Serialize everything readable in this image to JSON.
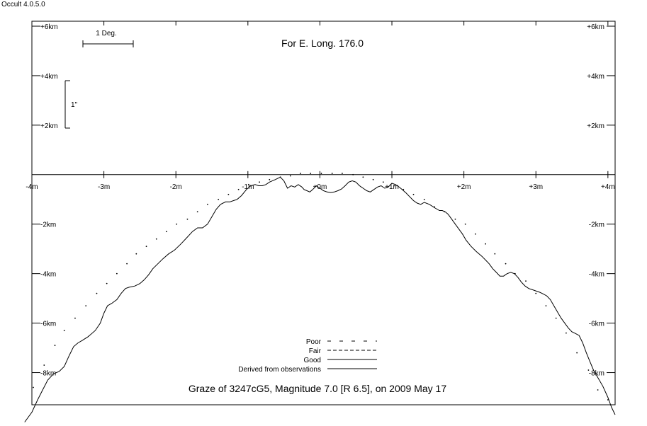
{
  "app": {
    "title": "Occult 4.0.5.0"
  },
  "chart_data": {
    "type": "line",
    "header": "For E. Long. 176.0",
    "title": "Graze of  3247cG5,  Magnitude 7.0 [R 6.5],  on 2009 May 17",
    "scale_bar_deg": "1 Deg.",
    "scale_bar_arcsec": "1\"",
    "xlim": [
      -4.0,
      4.1
    ],
    "ylim": [
      -9.3,
      6.2
    ],
    "x_ticks": [
      {
        "v": -4,
        "label": "-4m"
      },
      {
        "v": -3,
        "label": "-3m"
      },
      {
        "v": -2,
        "label": "-2m"
      },
      {
        "v": -1,
        "label": "-1m"
      },
      {
        "v": 0,
        "label": "+0m"
      },
      {
        "v": 1,
        "label": "+1m"
      },
      {
        "v": 2,
        "label": "+2m"
      },
      {
        "v": 3,
        "label": "+3m"
      },
      {
        "v": 4,
        "label": "+4m"
      }
    ],
    "y_ticks": [
      {
        "v": 6,
        "label": "+6km"
      },
      {
        "v": 4,
        "label": "+4km"
      },
      {
        "v": 2,
        "label": "+2km"
      },
      {
        "v": -2,
        "label": "-2km"
      },
      {
        "v": -4,
        "label": "-4km"
      },
      {
        "v": -6,
        "label": "-6km"
      },
      {
        "v": -8,
        "label": "-8km"
      }
    ],
    "legend": [
      {
        "label": "Poor",
        "style": "poor"
      },
      {
        "label": "Fair",
        "style": "fair"
      },
      {
        "label": "Good",
        "style": "good"
      },
      {
        "label": "Derived from observations",
        "style": "derived"
      }
    ],
    "series": [
      {
        "style": "dotted",
        "x": [
          -3.98,
          -3.83,
          -3.68,
          -3.55,
          -3.4,
          -3.25,
          -3.1,
          -2.96,
          -2.82,
          -2.68,
          -2.55,
          -2.41,
          -2.27,
          -2.13,
          -1.99,
          -1.84,
          -1.7,
          -1.56,
          -1.41,
          -1.27,
          -1.13,
          -0.99,
          -0.84,
          -0.7,
          -0.55,
          -0.41,
          -0.27,
          -0.13,
          0.02,
          0.17,
          0.31,
          0.46,
          0.6,
          0.74,
          0.88,
          1.03,
          1.16,
          1.3,
          1.45,
          1.59,
          1.73,
          1.88,
          2.02,
          2.16,
          2.3,
          2.43,
          2.58,
          2.71,
          2.86,
          3.0,
          3.14,
          3.28,
          3.42,
          3.57,
          3.73,
          3.86,
          4.0
        ],
        "y": [
          -8.6,
          -7.7,
          -6.9,
          -6.3,
          -5.8,
          -5.3,
          -4.8,
          -4.4,
          -4.0,
          -3.6,
          -3.2,
          -2.9,
          -2.6,
          -2.3,
          -2.0,
          -1.8,
          -1.5,
          -1.2,
          -1.0,
          -0.8,
          -0.6,
          -0.4,
          -0.3,
          -0.2,
          -0.1,
          -0.05,
          0.05,
          0.05,
          0.05,
          0.05,
          0.05,
          0.0,
          -0.1,
          -0.2,
          -0.3,
          -0.45,
          -0.6,
          -0.8,
          -1.0,
          -1.3,
          -1.5,
          -1.8,
          -2.0,
          -2.4,
          -2.8,
          -3.2,
          -3.6,
          -4.0,
          -4.3,
          -4.8,
          -5.3,
          -5.8,
          -6.4,
          -7.2,
          -7.9,
          -8.7,
          -9.1
        ]
      },
      {
        "style": "solid",
        "x": [
          -4.1,
          -4.0,
          -3.92,
          -3.85,
          -3.78,
          -3.7,
          -3.62,
          -3.55,
          -3.48,
          -3.42,
          -3.36,
          -3.3,
          -3.22,
          -3.12,
          -3.05,
          -3.0,
          -2.95,
          -2.89,
          -2.82,
          -2.76,
          -2.7,
          -2.65,
          -2.57,
          -2.5,
          -2.44,
          -2.38,
          -2.32,
          -2.25,
          -2.18,
          -2.1,
          -2.02,
          -1.93,
          -1.85,
          -1.77,
          -1.7,
          -1.63,
          -1.56,
          -1.5,
          -1.44,
          -1.38,
          -1.31,
          -1.25,
          -1.2,
          -1.15,
          -1.09,
          -1.02,
          -0.96,
          -0.9,
          -0.85,
          -0.8,
          -0.75,
          -0.7,
          -0.62,
          -0.55,
          -0.5,
          -0.45,
          -0.4,
          -0.35,
          -0.3,
          -0.25,
          -0.22,
          -0.18,
          -0.14,
          -0.1,
          -0.05,
          0.0,
          0.05,
          0.1,
          0.15,
          0.2,
          0.25,
          0.3,
          0.35,
          0.4,
          0.45,
          0.5,
          0.55,
          0.6,
          0.65,
          0.7,
          0.75,
          0.8,
          0.85,
          0.9,
          0.95,
          1.0,
          1.05,
          1.1,
          1.15,
          1.2,
          1.25,
          1.3,
          1.35,
          1.4,
          1.45,
          1.52,
          1.6,
          1.66,
          1.7,
          1.74,
          1.78,
          1.83,
          1.88,
          1.93,
          1.98,
          2.03,
          2.1,
          2.17,
          2.25,
          2.3,
          2.35,
          2.4,
          2.45,
          2.5,
          2.55,
          2.6,
          2.65,
          2.7,
          2.75,
          2.8,
          2.85,
          2.9,
          2.95,
          3.0,
          3.05,
          3.1,
          3.15,
          3.2,
          3.25,
          3.3,
          3.35,
          3.4,
          3.45,
          3.5,
          3.55,
          3.6,
          3.65,
          3.7,
          3.75,
          3.8,
          3.86,
          3.93,
          4.0,
          4.05,
          4.1
        ],
        "y": [
          -10.0,
          -9.6,
          -9.1,
          -8.7,
          -8.3,
          -8.05,
          -7.95,
          -7.75,
          -7.3,
          -6.95,
          -6.8,
          -6.7,
          -6.55,
          -6.3,
          -6.0,
          -5.6,
          -5.3,
          -5.2,
          -5.05,
          -4.8,
          -4.6,
          -4.55,
          -4.5,
          -4.4,
          -4.25,
          -4.05,
          -3.8,
          -3.6,
          -3.4,
          -3.2,
          -3.05,
          -2.8,
          -2.55,
          -2.3,
          -2.15,
          -2.15,
          -2.0,
          -1.7,
          -1.4,
          -1.2,
          -1.1,
          -1.1,
          -1.05,
          -1.0,
          -0.85,
          -0.6,
          -0.45,
          -0.4,
          -0.45,
          -0.45,
          -0.4,
          -0.3,
          -0.2,
          -0.1,
          -0.25,
          -0.55,
          -0.45,
          -0.5,
          -0.4,
          -0.5,
          -0.6,
          -0.65,
          -0.7,
          -0.6,
          -0.45,
          -0.55,
          -0.65,
          -0.7,
          -0.72,
          -0.7,
          -0.65,
          -0.58,
          -0.45,
          -0.3,
          -0.25,
          -0.3,
          -0.45,
          -0.55,
          -0.65,
          -0.7,
          -0.6,
          -0.5,
          -0.45,
          -0.55,
          -0.5,
          -0.35,
          -0.4,
          -0.5,
          -0.62,
          -0.75,
          -0.9,
          -1.05,
          -1.15,
          -1.2,
          -1.12,
          -1.2,
          -1.35,
          -1.45,
          -1.45,
          -1.5,
          -1.6,
          -1.8,
          -2.0,
          -2.2,
          -2.4,
          -2.65,
          -2.9,
          -3.1,
          -3.3,
          -3.45,
          -3.6,
          -3.8,
          -3.95,
          -4.1,
          -4.1,
          -4.0,
          -3.95,
          -4.0,
          -4.15,
          -4.35,
          -4.5,
          -4.6,
          -4.65,
          -4.7,
          -4.75,
          -4.82,
          -4.9,
          -5.05,
          -5.3,
          -5.55,
          -5.8,
          -6.0,
          -6.2,
          -6.35,
          -6.42,
          -6.5,
          -6.8,
          -7.2,
          -7.55,
          -7.9,
          -8.2,
          -8.55,
          -9.0,
          -9.4,
          -9.7
        ]
      }
    ]
  }
}
